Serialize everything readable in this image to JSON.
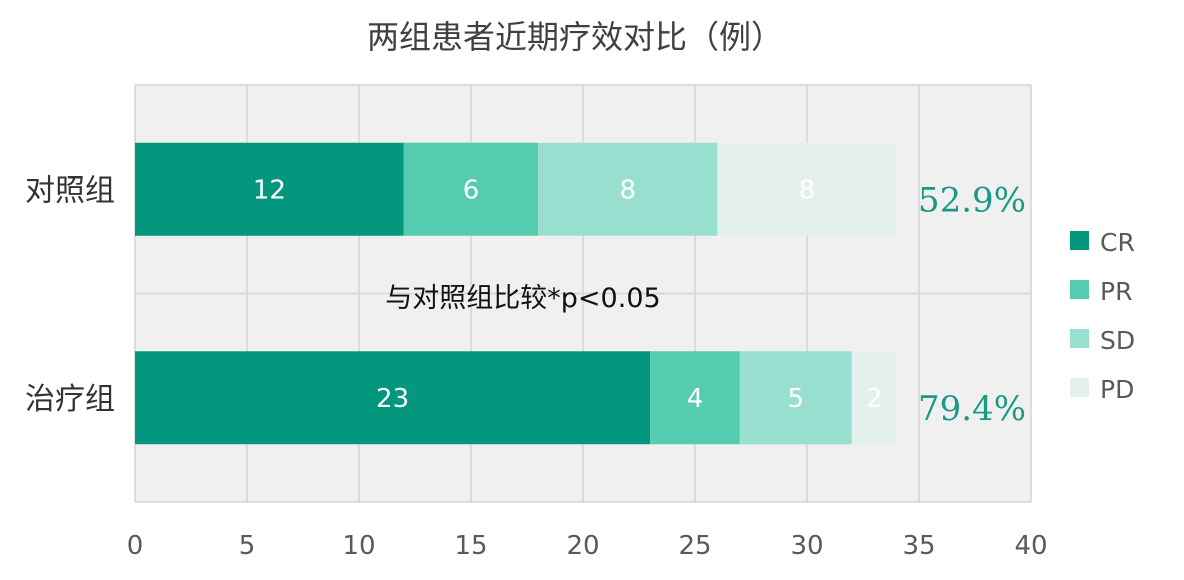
{
  "chart_data": {
    "type": "bar",
    "orientation": "horizontal",
    "stacked": true,
    "title": "两组患者近期疗效对比（例）",
    "categories": [
      "对照组",
      "治疗组"
    ],
    "series": [
      {
        "name": "CR",
        "values": [
          12,
          23
        ],
        "color": "#03987e"
      },
      {
        "name": "PR",
        "values": [
          6,
          4
        ],
        "color": "#55cbaf"
      },
      {
        "name": "SD",
        "values": [
          8,
          5
        ],
        "color": "#98dfcf"
      },
      {
        "name": "PD",
        "values": [
          8,
          2
        ],
        "color": "#e3f0ec"
      }
    ],
    "xlim": [
      0,
      40
    ],
    "xticks": [
      0,
      5,
      10,
      15,
      20,
      25,
      30,
      35,
      40
    ],
    "grid": true,
    "legend": "right",
    "annotations": {
      "rates": [
        "52.9%",
        "79.4%"
      ],
      "note": "与对照组比较*p<0.05"
    }
  }
}
